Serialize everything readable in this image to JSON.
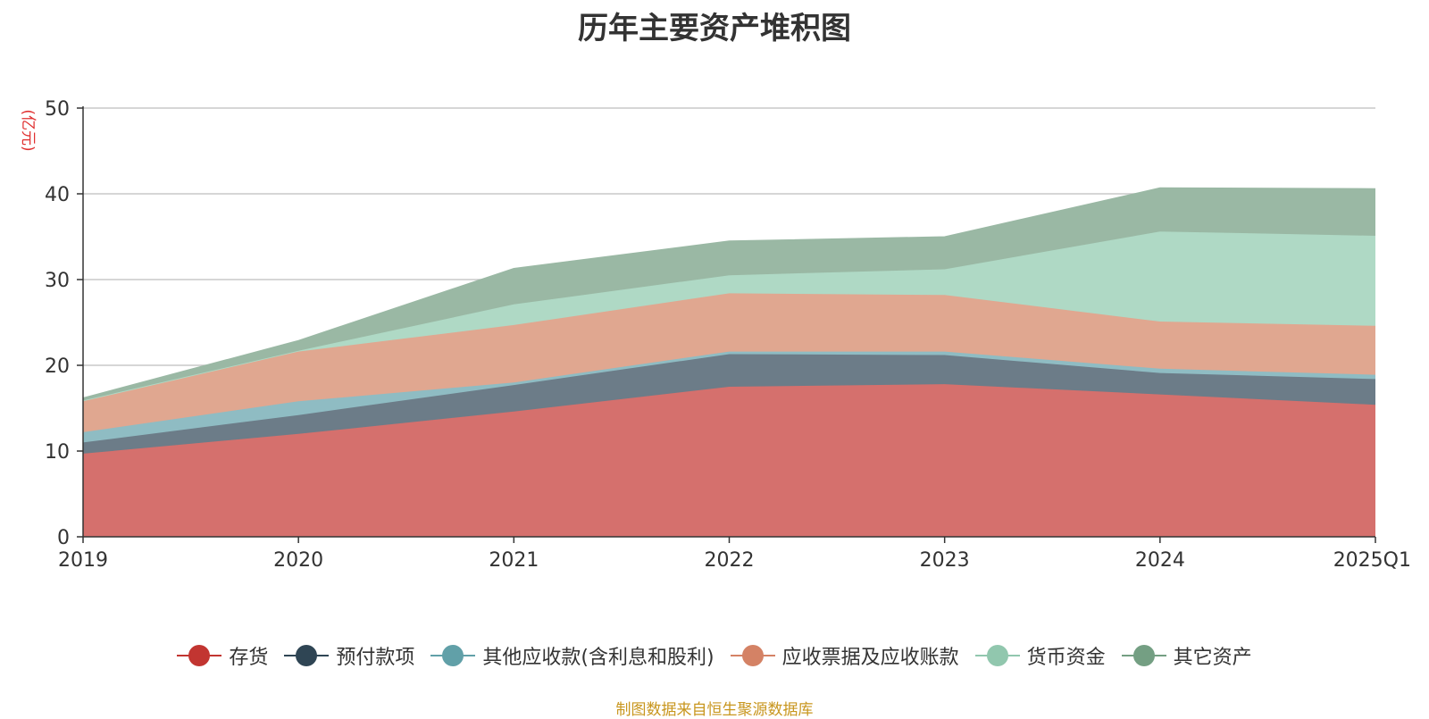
{
  "chart_data": {
    "type": "area",
    "stacked": true,
    "title": "历年主要资产堆积图",
    "ylabel": "(亿元)",
    "ylim": [
      0,
      50
    ],
    "yticks": [
      0,
      10,
      20,
      30,
      40,
      50
    ],
    "grid": true,
    "legend_position": "bottom",
    "categories": [
      "2019",
      "2020",
      "2021",
      "2022",
      "2023",
      "2024",
      "2025Q1"
    ],
    "series": [
      {
        "name": "存货",
        "color": "#c23531",
        "fill": "#d5706d",
        "values": [
          9.7,
          12.0,
          14.6,
          17.5,
          17.8,
          16.6,
          15.4
        ]
      },
      {
        "name": "预付款项",
        "color": "#2f4554",
        "fill": "#6c7c88",
        "values": [
          1.3,
          2.2,
          3.1,
          3.8,
          3.4,
          2.5,
          3.0
        ]
      },
      {
        "name": "其他应收款(含利息和股利)",
        "color": "#61a0a8",
        "fill": "#8fbcc3",
        "values": [
          1.2,
          1.6,
          0.3,
          0.3,
          0.4,
          0.5,
          0.5
        ]
      },
      {
        "name": "应收票据及应收账款",
        "color": "#d48265",
        "fill": "#e0a790",
        "values": [
          3.6,
          5.8,
          6.7,
          6.8,
          6.6,
          5.5,
          5.7
        ]
      },
      {
        "name": "货币资金",
        "color": "#91c7ae",
        "fill": "#afd9c5",
        "values": [
          0.1,
          0.1,
          2.4,
          2.1,
          3.0,
          10.5,
          10.5
        ]
      },
      {
        "name": "其它资产",
        "color": "#749f83",
        "fill": "#9ab8a4",
        "values": [
          0.3,
          1.2,
          4.2,
          4.0,
          3.8,
          5.1,
          5.5
        ]
      }
    ]
  },
  "footer": "制图数据来自恒生聚源数据库"
}
